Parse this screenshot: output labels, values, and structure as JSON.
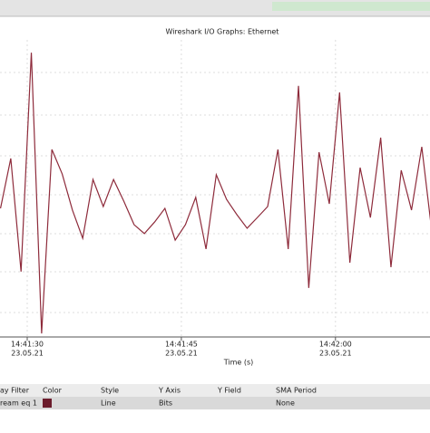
{
  "chart_data": {
    "type": "line",
    "title": "Wireshark I/O Graphs: Ethernet",
    "x_label": "Time (s)",
    "x": [
      27.4,
      28.4,
      29.4,
      30.4,
      31.4,
      32.4,
      33.4,
      34.4,
      35.4,
      36.4,
      37.4,
      38.4,
      39.4,
      40.4,
      41.4,
      42.4,
      43.4,
      44.4,
      45.4,
      46.4,
      47.4,
      48.4,
      49.4,
      50.4,
      51.4,
      52.4,
      53.4,
      54.4,
      55.4,
      56.4,
      57.4,
      58.4,
      59.4,
      60.4,
      61.4,
      62.4,
      63.4,
      64.4,
      65.4,
      66.4,
      67.4,
      68.4,
      69.4
    ],
    "values": [
      43.3,
      60.1,
      22.0,
      95.7,
      1.2,
      63.1,
      54.9,
      42.7,
      33.2,
      53.0,
      43.9,
      53.0,
      45.7,
      37.8,
      34.8,
      38.7,
      43.3,
      32.6,
      37.8,
      47.0,
      29.6,
      54.6,
      46.3,
      41.2,
      36.6,
      40.2,
      43.9,
      63.1,
      29.6,
      84.5,
      16.5,
      62.2,
      44.8,
      82.3,
      25.0,
      57.0,
      40.2,
      67.1,
      23.5,
      56.1,
      42.7,
      64.0,
      34.8
    ],
    "color": "#8e2b3b",
    "xlim": [
      27.35,
      69.2
    ],
    "ylim": [
      0,
      100
    ],
    "xticks": [
      {
        "value": 30,
        "label": "14:41:30"
      },
      {
        "value": 45,
        "label": "14:41:45"
      },
      {
        "value": 60,
        "label": "14:42:00"
      }
    ],
    "xtick_dates": [
      "23.05.21",
      "23.05.21",
      "23.05.21"
    ],
    "grid": true
  },
  "table": {
    "header": [
      "ay Filter",
      "Color",
      "Style",
      "Y Axis",
      "Y Field",
      "SMA Period"
    ],
    "row": {
      "filter": "ream eq 1",
      "style": "Line",
      "y_axis": "Bits",
      "sma": "None"
    }
  }
}
